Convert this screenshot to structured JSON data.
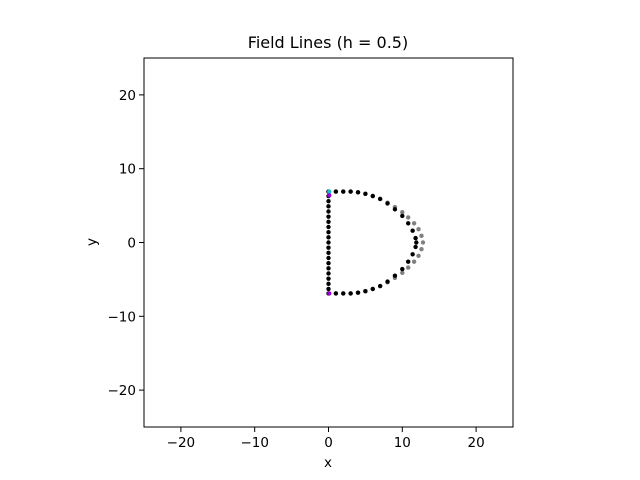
{
  "chart_data": {
    "type": "scatter",
    "title": "Field Lines (h = 0.5)",
    "xlabel": "x",
    "ylabel": "y",
    "xlim": [
      -25,
      25
    ],
    "ylim": [
      -25,
      25
    ],
    "xticks": [
      -20,
      -10,
      0,
      10,
      20
    ],
    "yticks": [
      -20,
      -10,
      0,
      10,
      20
    ],
    "xtick_labels": [
      "−20",
      "−10",
      "0",
      "10",
      "20"
    ],
    "ytick_labels": [
      "−20",
      "−10",
      "0",
      "10",
      "20"
    ],
    "grid": false,
    "legend": "none",
    "series": [
      {
        "color": "#808080",
        "marker": "circle",
        "points": [
          [
            0.0,
            6.9
          ],
          [
            1.0,
            6.9
          ],
          [
            2.0,
            6.9
          ],
          [
            3.0,
            6.9
          ],
          [
            4.0,
            6.8
          ],
          [
            5.0,
            6.6
          ],
          [
            6.0,
            6.3
          ],
          [
            7.0,
            5.9
          ],
          [
            8.0,
            5.4
          ],
          [
            9.0,
            4.8
          ],
          [
            10.0,
            4.1
          ],
          [
            10.8,
            3.4
          ],
          [
            11.6,
            2.6
          ],
          [
            12.2,
            1.8
          ],
          [
            12.6,
            0.9
          ],
          [
            12.8,
            0.0
          ],
          [
            12.6,
            -0.9
          ],
          [
            12.2,
            -1.8
          ],
          [
            11.6,
            -2.6
          ],
          [
            10.8,
            -3.4
          ],
          [
            10.0,
            -4.1
          ],
          [
            9.0,
            -4.8
          ],
          [
            8.0,
            -5.4
          ],
          [
            7.0,
            -5.9
          ],
          [
            6.0,
            -6.3
          ],
          [
            5.0,
            -6.6
          ],
          [
            4.0,
            -6.8
          ],
          [
            3.0,
            -6.9
          ],
          [
            2.0,
            -6.9
          ],
          [
            1.0,
            -6.9
          ]
        ]
      },
      {
        "color": "#000000",
        "marker": "circle",
        "points": [
          [
            0.0,
            6.9
          ],
          [
            1.0,
            6.9
          ],
          [
            2.0,
            6.9
          ],
          [
            3.0,
            6.9
          ],
          [
            4.0,
            6.8
          ],
          [
            5.0,
            6.6
          ],
          [
            6.0,
            6.3
          ],
          [
            7.0,
            5.9
          ],
          [
            8.0,
            5.3
          ],
          [
            9.0,
            4.5
          ],
          [
            10.0,
            3.6
          ],
          [
            10.8,
            2.6
          ],
          [
            11.4,
            1.6
          ],
          [
            11.8,
            0.6
          ],
          [
            11.9,
            0.0
          ],
          [
            11.8,
            -0.6
          ],
          [
            11.4,
            -1.6
          ],
          [
            10.8,
            -2.6
          ],
          [
            10.0,
            -3.6
          ],
          [
            9.0,
            -4.5
          ],
          [
            8.0,
            -5.3
          ],
          [
            7.0,
            -5.9
          ],
          [
            6.0,
            -6.3
          ],
          [
            5.0,
            -6.6
          ],
          [
            4.0,
            -6.8
          ],
          [
            3.0,
            -6.9
          ],
          [
            2.0,
            -6.9
          ],
          [
            1.0,
            -6.9
          ],
          [
            0.0,
            -6.9
          ],
          [
            0.0,
            -6.3
          ],
          [
            0.0,
            -5.6
          ],
          [
            0.0,
            -4.9
          ],
          [
            0.0,
            -4.2
          ],
          [
            0.0,
            -3.5
          ],
          [
            0.0,
            -2.8
          ],
          [
            0.0,
            -2.1
          ],
          [
            0.0,
            -1.4
          ],
          [
            0.0,
            -0.7
          ],
          [
            0.0,
            0.0
          ],
          [
            0.0,
            0.7
          ],
          [
            0.0,
            1.4
          ],
          [
            0.0,
            2.1
          ],
          [
            0.0,
            2.8
          ],
          [
            0.0,
            3.5
          ],
          [
            0.0,
            4.2
          ],
          [
            0.0,
            4.9
          ],
          [
            0.0,
            5.6
          ],
          [
            0.0,
            6.3
          ]
        ]
      },
      {
        "color": "#17becf",
        "marker": "circle",
        "points": [
          [
            0.1,
            6.9
          ]
        ]
      },
      {
        "color": "#9400d3",
        "marker": "circle",
        "points": [
          [
            0.1,
            6.4
          ],
          [
            0.1,
            -6.9
          ]
        ]
      }
    ]
  }
}
